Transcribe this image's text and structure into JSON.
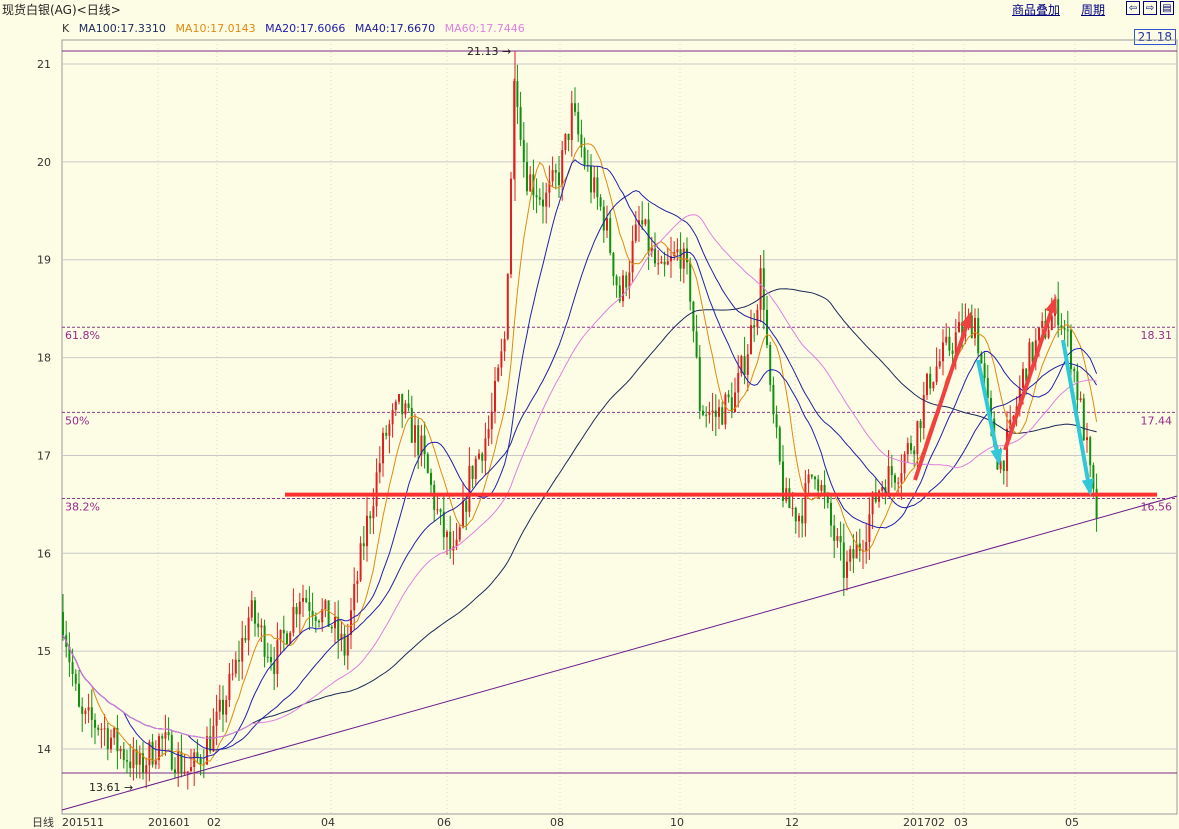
{
  "header": {
    "title": "现货白银(AG)<日线>",
    "overlay_label": "商品叠加",
    "period_label": "周期",
    "nav_icons": [
      "arrow-left-icon",
      "arrow-right-icon",
      "window-icon"
    ]
  },
  "ma_legend": {
    "k_label": "K",
    "items": [
      {
        "text": "MA100:17.3310",
        "color": "#1a2a5a"
      },
      {
        "text": "MA10:17.0143",
        "color": "#e08a10"
      },
      {
        "text": "MA20:17.6066",
        "color": "#2020b0"
      },
      {
        "text": "MA40:17.6670",
        "color": "#2020a0"
      },
      {
        "text": "MA60:17.7446",
        "color": "#e080e0"
      }
    ]
  },
  "current_price": "21.18",
  "chart_data": {
    "type": "candlestick",
    "ylim": [
      13.4,
      21.4
    ],
    "y_ticks": [
      14,
      15,
      16,
      17,
      18,
      19,
      20,
      21
    ],
    "y_tick_labels": [
      "14",
      "15",
      "16",
      "17",
      "18",
      "19",
      "20",
      "21"
    ],
    "x_labels": [
      "日线",
      "201511",
      "201601",
      "02",
      "04",
      "06",
      "08",
      "10",
      "12",
      "201702",
      "03",
      "05"
    ],
    "high_label": "21.13",
    "low_label": "13.61",
    "high_value": 21.13,
    "low_value": 13.61,
    "fib_levels": [
      {
        "pct": "61.8%",
        "price": "18.31",
        "value": 18.31
      },
      {
        "pct": "50%",
        "price": "17.44",
        "value": 17.44
      },
      {
        "pct": "38.2%",
        "price": "16.56",
        "value": 16.56
      }
    ],
    "support_value": 16.6,
    "colors": {
      "up": "#e02020",
      "down": "#109010",
      "fib": "#8a3a8a",
      "support": "#ff3030",
      "arrow_up": "#f04040",
      "arrow_down": "#30c8d8"
    }
  }
}
